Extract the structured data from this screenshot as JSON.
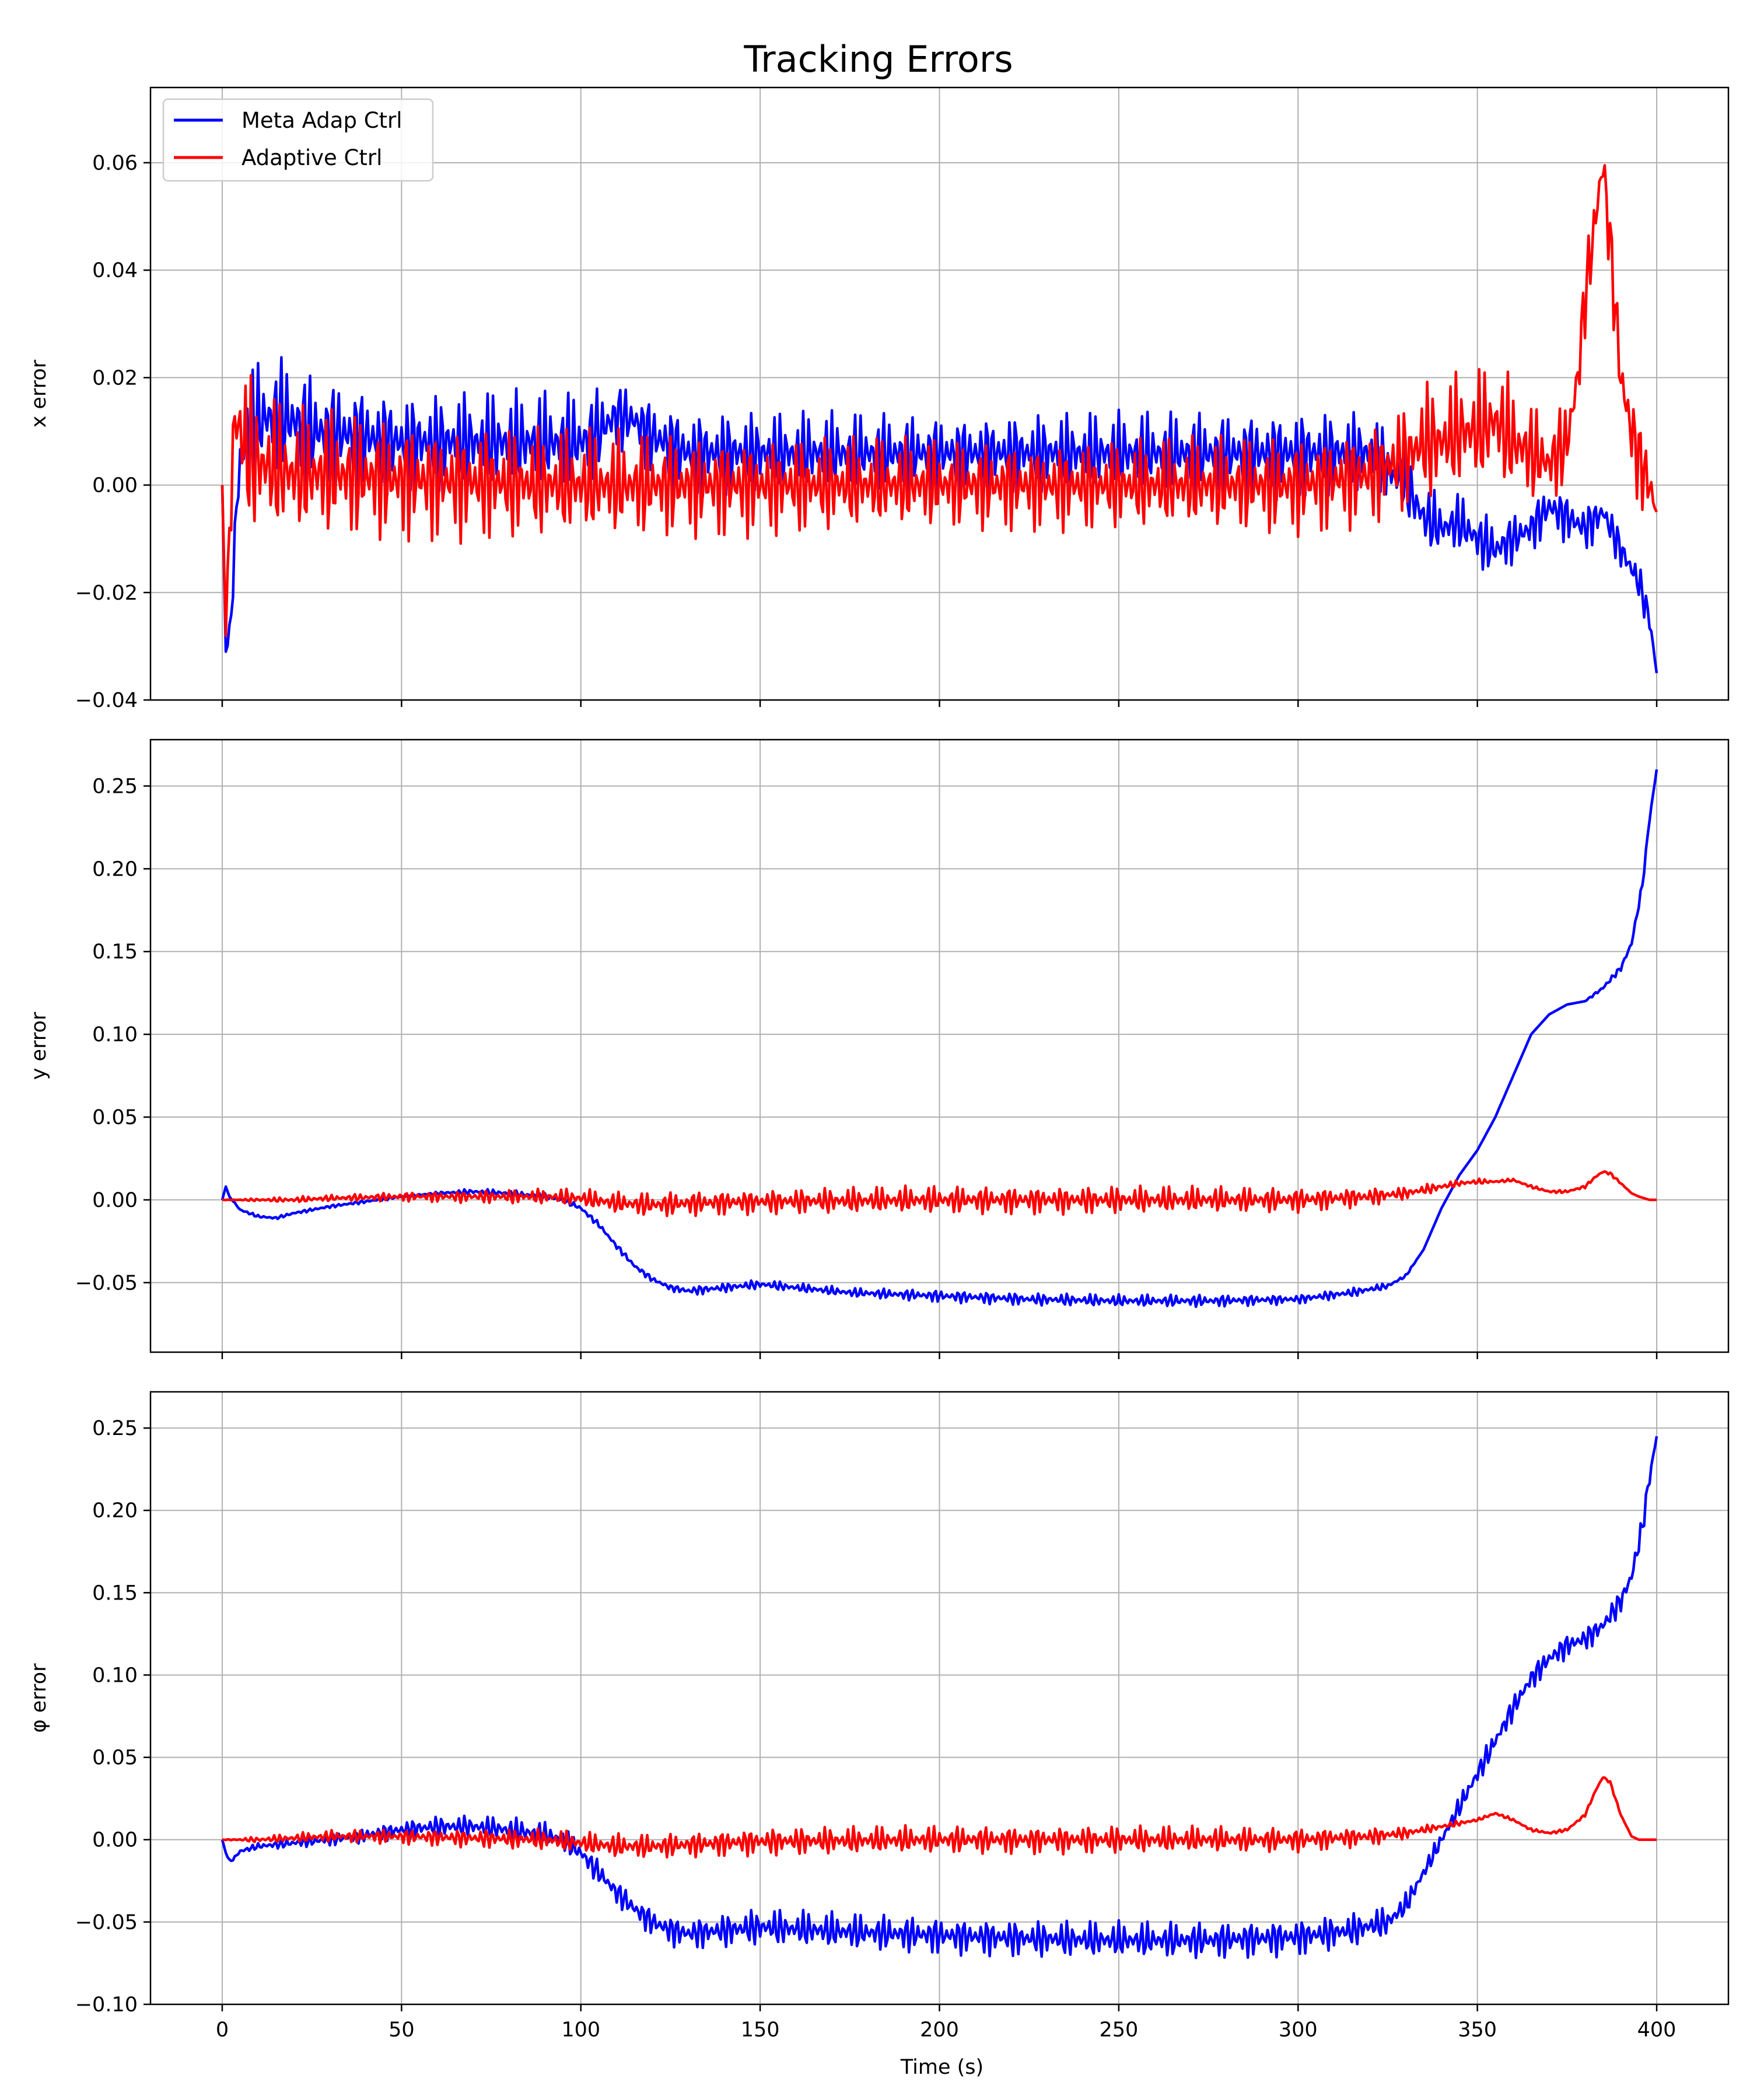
{
  "chart_data": {
    "type": "line",
    "title": "Tracking Errors",
    "xlabel": "Time (s)",
    "xlim": [
      -20,
      420
    ],
    "x_ticks": [
      0,
      50,
      100,
      150,
      200,
      250,
      300,
      350,
      400
    ],
    "x_tick_labels": [
      "0",
      "50",
      "100",
      "150",
      "200",
      "250",
      "300",
      "350",
      "400"
    ],
    "grid": true,
    "legend": {
      "placement": "upper-left",
      "panel": 0,
      "entries": [
        "Meta Adap Ctrl",
        "Adaptive Ctrl"
      ]
    },
    "colors": {
      "Meta Adap Ctrl": "#0000ff",
      "Adaptive Ctrl": "#ff0000",
      "grid": "#b0b0b0"
    },
    "panels": [
      {
        "ylabel": "x error",
        "ylim": [
          -0.04,
          0.074
        ],
        "y_ticks": [
          -0.04,
          -0.02,
          0.0,
          0.02,
          0.04,
          0.06
        ],
        "y_tick_labels": [
          "−0.04",
          "−0.02",
          "0.00",
          "0.02",
          "0.04",
          "0.06"
        ],
        "series": [
          {
            "name": "Meta Adap Ctrl",
            "x": [
              0,
              1,
              2,
              3,
              4,
              5,
              7,
              10,
              15,
              20,
              25,
              30,
              40,
              50,
              60,
              70,
              80,
              90,
              100,
              105,
              110,
              115,
              120,
              130,
              150,
              200,
              250,
              300,
              320,
              330,
              335,
              340,
              345,
              350,
              355,
              360,
              365,
              370,
              375,
              380,
              385,
              390,
              395,
              398,
              400
            ],
            "y": [
              0.0,
              -0.031,
              -0.028,
              -0.018,
              -0.004,
              0.005,
              0.01,
              0.012,
              0.013,
              0.012,
              0.01,
              0.01,
              0.009,
              0.008,
              0.008,
              0.008,
              0.008,
              0.008,
              0.008,
              0.01,
              0.013,
              0.012,
              0.009,
              0.006,
              0.006,
              0.006,
              0.006,
              0.006,
              0.006,
              0.0,
              -0.006,
              -0.008,
              -0.007,
              -0.01,
              -0.012,
              -0.01,
              -0.008,
              -0.004,
              -0.006,
              -0.008,
              -0.005,
              -0.012,
              -0.018,
              -0.025,
              -0.035
            ],
            "amplitude": [
              0.0,
              0.0,
              0.002,
              0.005,
              0.008,
              0.01,
              0.012,
              0.012,
              0.012,
              0.012,
              0.012,
              0.011,
              0.011,
              0.01,
              0.01,
              0.01,
              0.01,
              0.01,
              0.01,
              0.009,
              0.007,
              0.007,
              0.008,
              0.009,
              0.008,
              0.008,
              0.008,
              0.009,
              0.008,
              0.007,
              0.007,
              0.006,
              0.006,
              0.006,
              0.006,
              0.005,
              0.005,
              0.005,
              0.005,
              0.005,
              0.004,
              0.004,
              0.004,
              0.003,
              0.0
            ]
          },
          {
            "name": "Adaptive Ctrl",
            "x": [
              0,
              1,
              2,
              3,
              4,
              5,
              7,
              10,
              15,
              20,
              30,
              50,
              100,
              150,
              200,
              250,
              300,
              320,
              330,
              335,
              340,
              345,
              350,
              355,
              360,
              365,
              370,
              375,
              378,
              380,
              383,
              385,
              387,
              390,
              393,
              395,
              398,
              400
            ],
            "y": [
              0.0,
              -0.028,
              -0.01,
              0.008,
              0.012,
              0.01,
              0.006,
              0.004,
              0.003,
              0.002,
              0.002,
              0.001,
              0.0,
              0.0,
              0.0,
              0.0,
              0.0,
              0.002,
              0.005,
              0.008,
              0.008,
              0.01,
              0.01,
              0.012,
              0.008,
              0.006,
              0.004,
              0.008,
              0.02,
              0.035,
              0.05,
              0.06,
              0.045,
              0.02,
              0.01,
              0.005,
              0.0,
              -0.005
            ],
            "amplitude": [
              0.0,
              0.0,
              0.01,
              0.015,
              0.016,
              0.016,
              0.016,
              0.015,
              0.014,
              0.013,
              0.013,
              0.012,
              0.011,
              0.01,
              0.009,
              0.009,
              0.01,
              0.01,
              0.011,
              0.012,
              0.012,
              0.012,
              0.012,
              0.012,
              0.012,
              0.01,
              0.009,
              0.009,
              0.008,
              0.008,
              0.008,
              0.008,
              0.008,
              0.009,
              0.009,
              0.009,
              0.012,
              0.0
            ]
          }
        ]
      },
      {
        "ylabel": "y error",
        "ylim": [
          -0.092,
          0.278
        ],
        "y_ticks": [
          -0.05,
          0.0,
          0.05,
          0.1,
          0.15,
          0.2,
          0.25
        ],
        "y_tick_labels": [
          "−0.05",
          "0.00",
          "0.05",
          "0.10",
          "0.15",
          "0.20",
          "0.25"
        ],
        "series": [
          {
            "name": "Meta Adap Ctrl",
            "x": [
              0,
              1,
              2,
              5,
              10,
              15,
              20,
              30,
              40,
              50,
              60,
              70,
              80,
              90,
              95,
              100,
              105,
              110,
              115,
              120,
              125,
              130,
              140,
              150,
              160,
              175,
              200,
              225,
              250,
              275,
              300,
              315,
              325,
              330,
              335,
              340,
              345,
              350,
              355,
              360,
              365,
              370,
              375,
              380,
              385,
              390,
              393,
              396,
              398,
              400
            ],
            "y": [
              0.0,
              0.008,
              0.002,
              -0.006,
              -0.01,
              -0.011,
              -0.008,
              -0.004,
              -0.001,
              0.002,
              0.004,
              0.005,
              0.004,
              0.002,
              0.0,
              -0.005,
              -0.015,
              -0.028,
              -0.04,
              -0.048,
              -0.053,
              -0.055,
              -0.053,
              -0.051,
              -0.053,
              -0.056,
              -0.058,
              -0.06,
              -0.061,
              -0.061,
              -0.06,
              -0.056,
              -0.052,
              -0.046,
              -0.03,
              -0.005,
              0.015,
              0.03,
              0.05,
              0.075,
              0.1,
              0.112,
              0.118,
              0.12,
              0.128,
              0.14,
              0.155,
              0.19,
              0.23,
              0.26
            ],
            "amplitude": [
              0.0,
              0.0,
              0.0,
              0.001,
              0.001,
              0.001,
              0.001,
              0.001,
              0.001,
              0.001,
              0.001,
              0.002,
              0.002,
              0.002,
              0.002,
              0.002,
              0.002,
              0.002,
              0.002,
              0.002,
              0.002,
              0.003,
              0.003,
              0.003,
              0.003,
              0.003,
              0.004,
              0.004,
              0.004,
              0.004,
              0.003,
              0.003,
              0.002,
              0.001,
              0.0,
              0.0,
              0.0,
              0.0,
              0.0,
              0.0,
              0.0,
              0.0,
              0.0,
              0.0,
              0.002,
              0.002,
              0.003,
              0.003,
              0.002,
              0.0
            ]
          },
          {
            "name": "Adaptive Ctrl",
            "x": [
              0,
              10,
              20,
              30,
              50,
              70,
              90,
              100,
              110,
              120,
              130,
              150,
              200,
              250,
              300,
              320,
              330,
              340,
              345,
              350,
              355,
              360,
              365,
              370,
              375,
              380,
              383,
              385,
              387,
              390,
              393,
              395,
              398,
              400
            ],
            "y": [
              0.0,
              0.0,
              0.0,
              0.001,
              0.002,
              0.002,
              0.002,
              0.001,
              -0.002,
              -0.003,
              -0.002,
              -0.001,
              0.0,
              0.0,
              0.0,
              0.002,
              0.004,
              0.008,
              0.01,
              0.011,
              0.011,
              0.012,
              0.008,
              0.005,
              0.005,
              0.008,
              0.014,
              0.017,
              0.016,
              0.01,
              0.004,
              0.002,
              0.0,
              0.0
            ],
            "amplitude": [
              0.0,
              0.001,
              0.002,
              0.002,
              0.003,
              0.004,
              0.005,
              0.006,
              0.007,
              0.008,
              0.008,
              0.008,
              0.009,
              0.009,
              0.008,
              0.006,
              0.004,
              0.003,
              0.002,
              0.002,
              0.001,
              0.001,
              0.001,
              0.001,
              0.001,
              0.001,
              0.001,
              0.001,
              0.001,
              0.001,
              0.0,
              0.0,
              0.0,
              0.0
            ]
          }
        ]
      },
      {
        "ylabel": "φ error",
        "ylim": [
          -0.1,
          0.272
        ],
        "y_ticks": [
          -0.1,
          -0.05,
          0.0,
          0.05,
          0.1,
          0.15,
          0.2,
          0.25
        ],
        "y_tick_labels": [
          "−0.10",
          "−0.05",
          "0.00",
          "0.05",
          "0.10",
          "0.15",
          "0.20",
          "0.25"
        ],
        "series": [
          {
            "name": "Meta Adap Ctrl",
            "x": [
              0,
              1,
              2,
              3,
              5,
              10,
              15,
              20,
              30,
              40,
              50,
              60,
              70,
              80,
              90,
              95,
              100,
              105,
              110,
              115,
              120,
              125,
              130,
              140,
              150,
              175,
              200,
              225,
              250,
              275,
              300,
              315,
              325,
              330,
              335,
              340,
              345,
              350,
              355,
              360,
              365,
              370,
              375,
              380,
              385,
              390,
              393,
              396,
              398,
              400
            ],
            "y": [
              0.0,
              -0.008,
              -0.013,
              -0.012,
              -0.007,
              -0.004,
              -0.003,
              -0.002,
              0.0,
              0.003,
              0.006,
              0.008,
              0.008,
              0.006,
              0.003,
              0.0,
              -0.008,
              -0.02,
              -0.032,
              -0.042,
              -0.05,
              -0.055,
              -0.057,
              -0.055,
              -0.053,
              -0.056,
              -0.058,
              -0.06,
              -0.061,
              -0.061,
              -0.059,
              -0.055,
              -0.05,
              -0.04,
              -0.02,
              0.0,
              0.02,
              0.04,
              0.06,
              0.08,
              0.098,
              0.11,
              0.118,
              0.122,
              0.13,
              0.145,
              0.16,
              0.19,
              0.22,
              0.245
            ],
            "amplitude": [
              0.0,
              0.0,
              0.001,
              0.001,
              0.002,
              0.002,
              0.003,
              0.003,
              0.004,
              0.005,
              0.006,
              0.007,
              0.007,
              0.008,
              0.008,
              0.008,
              0.008,
              0.008,
              0.008,
              0.009,
              0.009,
              0.01,
              0.01,
              0.011,
              0.012,
              0.012,
              0.012,
              0.012,
              0.012,
              0.012,
              0.012,
              0.011,
              0.01,
              0.008,
              0.006,
              0.006,
              0.007,
              0.008,
              0.008,
              0.008,
              0.008,
              0.008,
              0.008,
              0.008,
              0.008,
              0.008,
              0.008,
              0.008,
              0.007,
              0.0
            ]
          },
          {
            "name": "Adaptive Ctrl",
            "x": [
              0,
              10,
              20,
              30,
              50,
              70,
              90,
              100,
              110,
              120,
              130,
              150,
              200,
              250,
              300,
              320,
              330,
              340,
              345,
              350,
              355,
              360,
              365,
              370,
              375,
              380,
              383,
              385,
              387,
              390,
              393,
              395,
              398,
              400
            ],
            "y": [
              0.0,
              0.0,
              0.001,
              0.002,
              0.002,
              0.001,
              0.0,
              -0.002,
              -0.004,
              -0.004,
              -0.003,
              -0.001,
              0.0,
              0.0,
              0.0,
              0.002,
              0.004,
              0.008,
              0.01,
              0.012,
              0.016,
              0.012,
              0.006,
              0.004,
              0.006,
              0.015,
              0.03,
              0.038,
              0.035,
              0.015,
              0.002,
              0.0,
              0.0,
              0.0
            ],
            "amplitude": [
              0.0,
              0.002,
              0.003,
              0.004,
              0.005,
              0.006,
              0.007,
              0.007,
              0.008,
              0.008,
              0.008,
              0.009,
              0.009,
              0.009,
              0.008,
              0.006,
              0.004,
              0.002,
              0.002,
              0.001,
              0.001,
              0.001,
              0.001,
              0.001,
              0.001,
              0.001,
              0.001,
              0.001,
              0.001,
              0.001,
              0.0,
              0.0,
              0.0,
              0.0
            ]
          }
        ]
      }
    ]
  }
}
